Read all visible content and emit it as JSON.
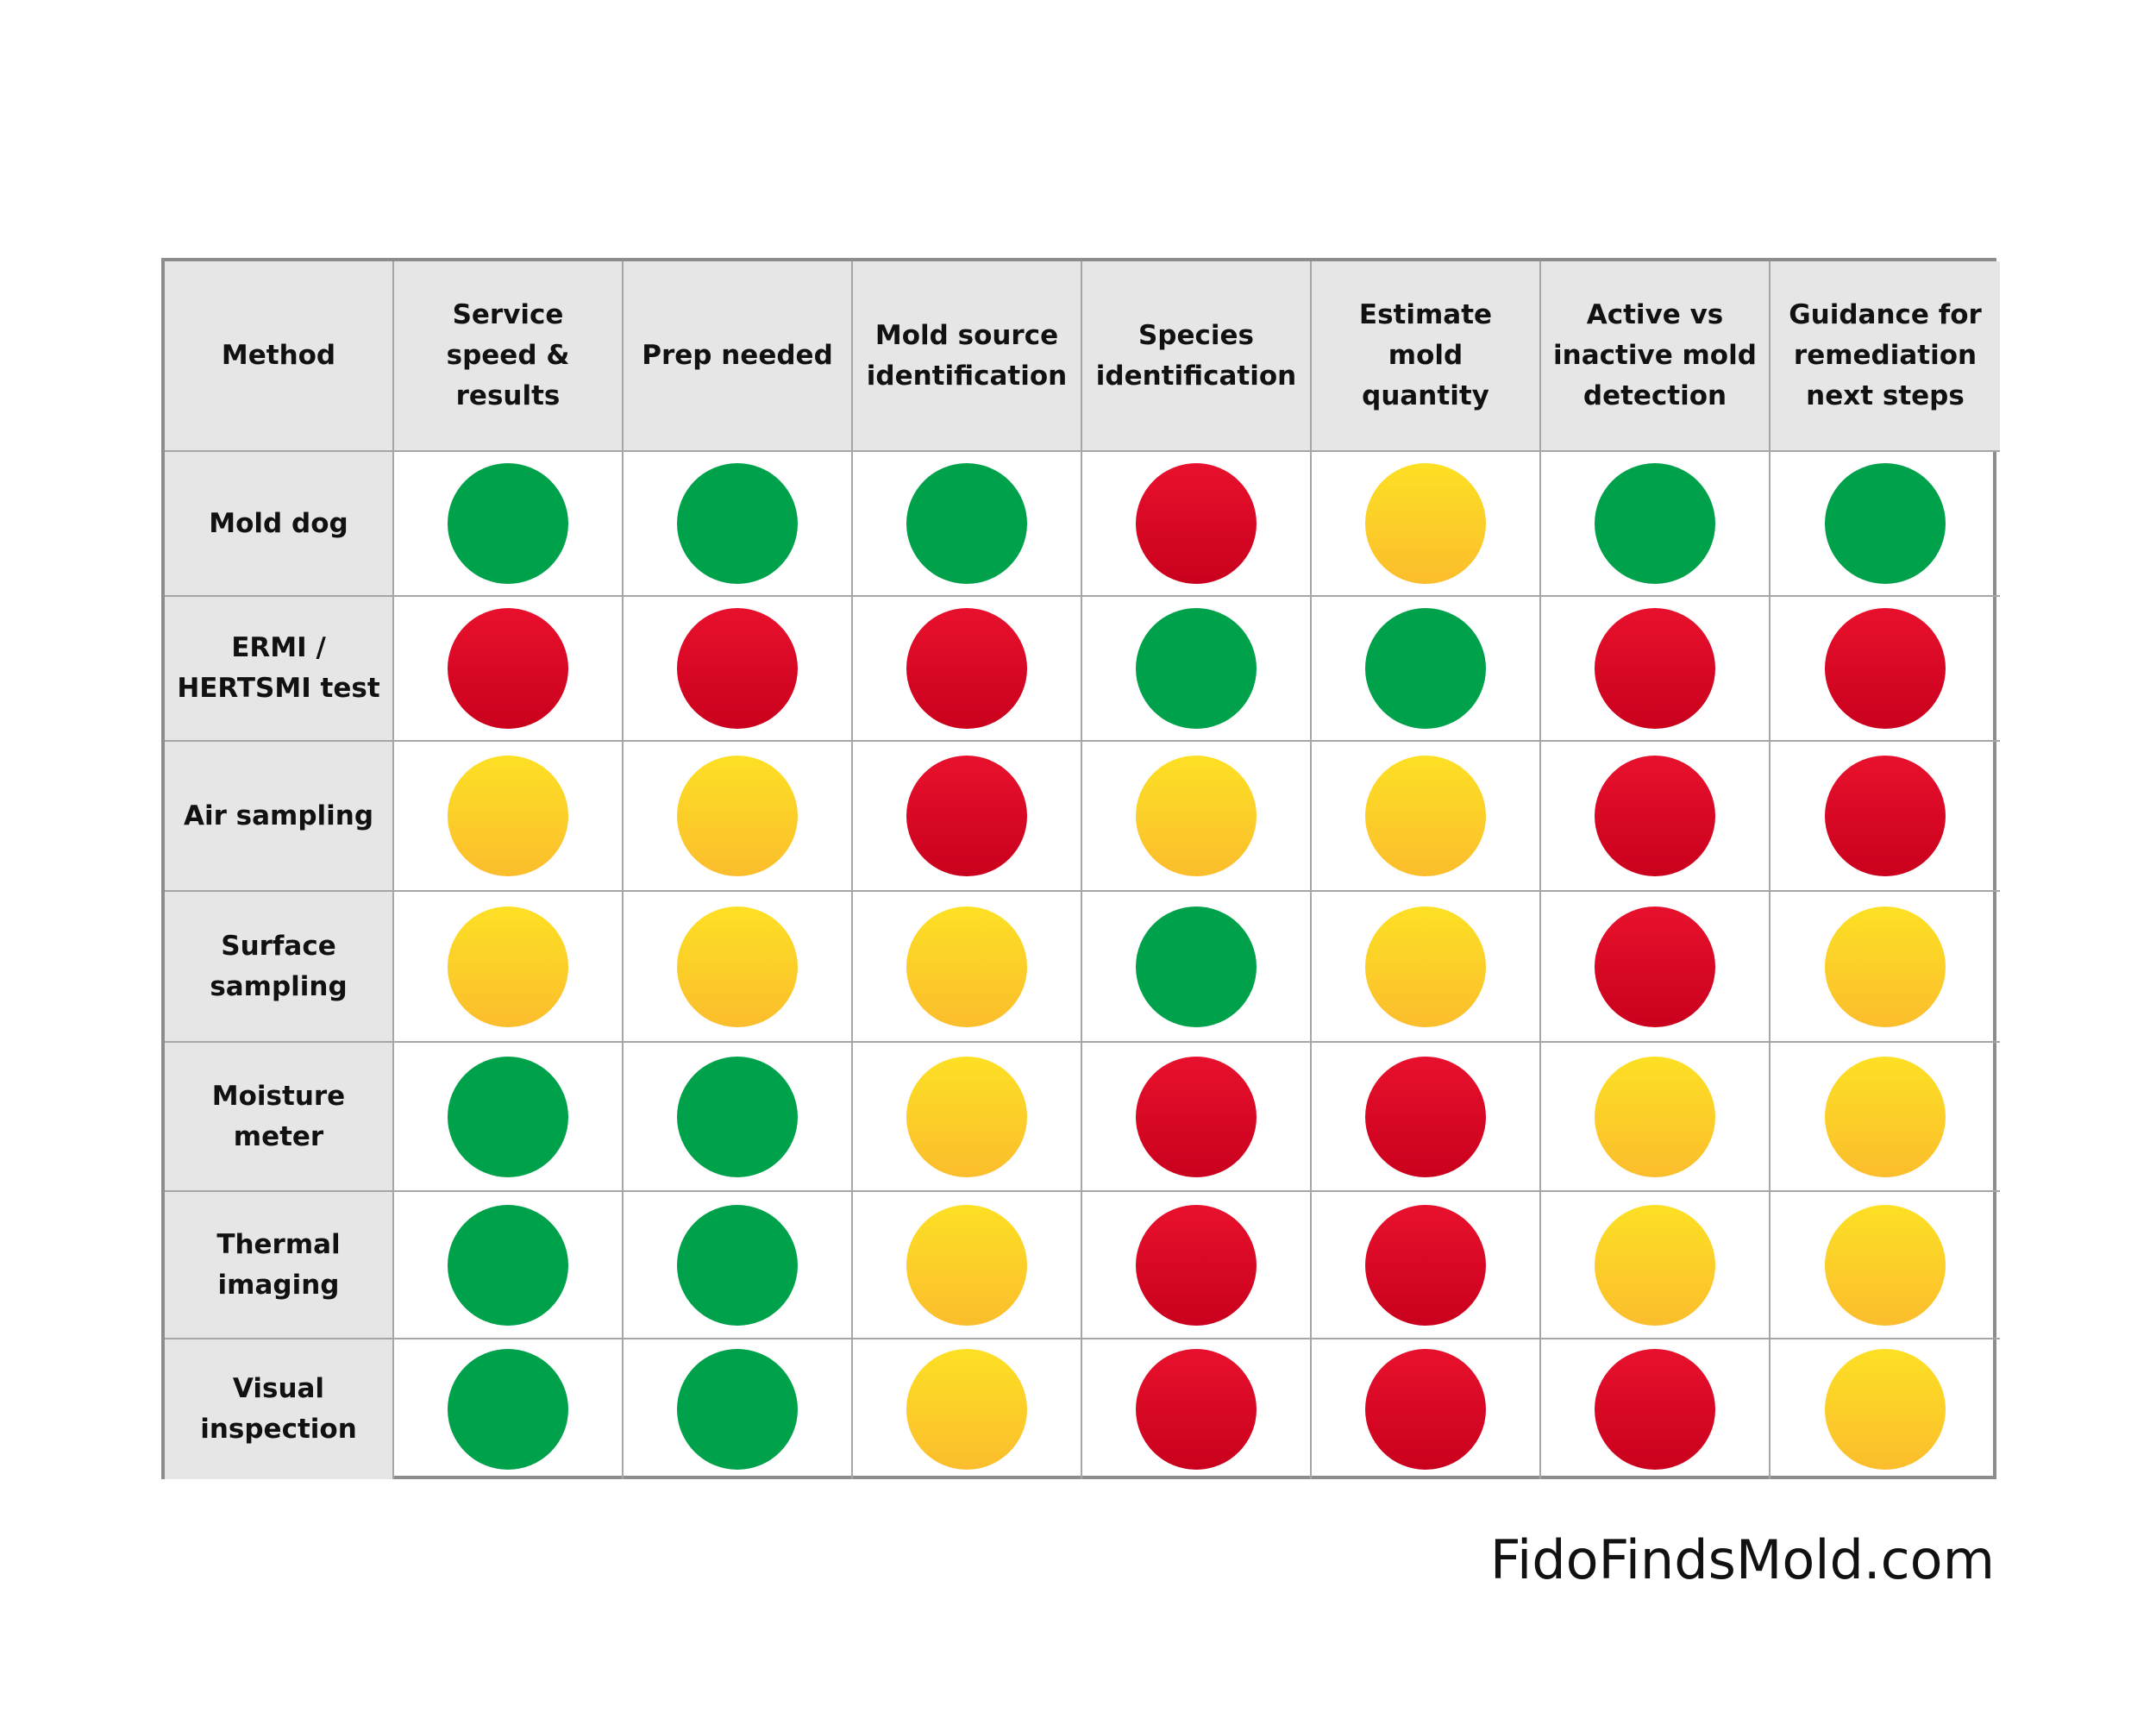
{
  "table": {
    "header": [
      "Method",
      "Service speed & results",
      "Prep needed",
      "Mold source identification",
      "Species identification",
      "Estimate mold quantity",
      "Active vs inactive mold detection",
      "Guidance for remediation next steps"
    ],
    "rows": [
      {
        "label": "Mold dog",
        "ratings": [
          "green",
          "green",
          "green",
          "red",
          "yellow",
          "green",
          "green"
        ]
      },
      {
        "label": "ERMI / HERTSMI test",
        "ratings": [
          "red",
          "red",
          "red",
          "green",
          "green",
          "red",
          "red"
        ]
      },
      {
        "label": "Air sampling",
        "ratings": [
          "yellow",
          "yellow",
          "red",
          "yellow",
          "yellow",
          "red",
          "red"
        ]
      },
      {
        "label": "Surface sampling",
        "ratings": [
          "yellow",
          "yellow",
          "yellow",
          "green",
          "yellow",
          "red",
          "yellow"
        ]
      },
      {
        "label": "Moisture meter",
        "ratings": [
          "green",
          "green",
          "yellow",
          "red",
          "red",
          "yellow",
          "yellow"
        ]
      },
      {
        "label": "Thermal imaging",
        "ratings": [
          "green",
          "green",
          "yellow",
          "red",
          "red",
          "yellow",
          "yellow"
        ]
      },
      {
        "label": "Visual inspection",
        "ratings": [
          "green",
          "green",
          "yellow",
          "red",
          "red",
          "red",
          "yellow"
        ]
      }
    ],
    "colors": {
      "green": [
        "#00a14b",
        "#00a14b"
      ],
      "red": [
        "#e8112d",
        "#c9001d"
      ],
      "yellow": [
        "#fde024",
        "#fbbd2d"
      ]
    }
  },
  "footer": "FidoFindsMold.com"
}
